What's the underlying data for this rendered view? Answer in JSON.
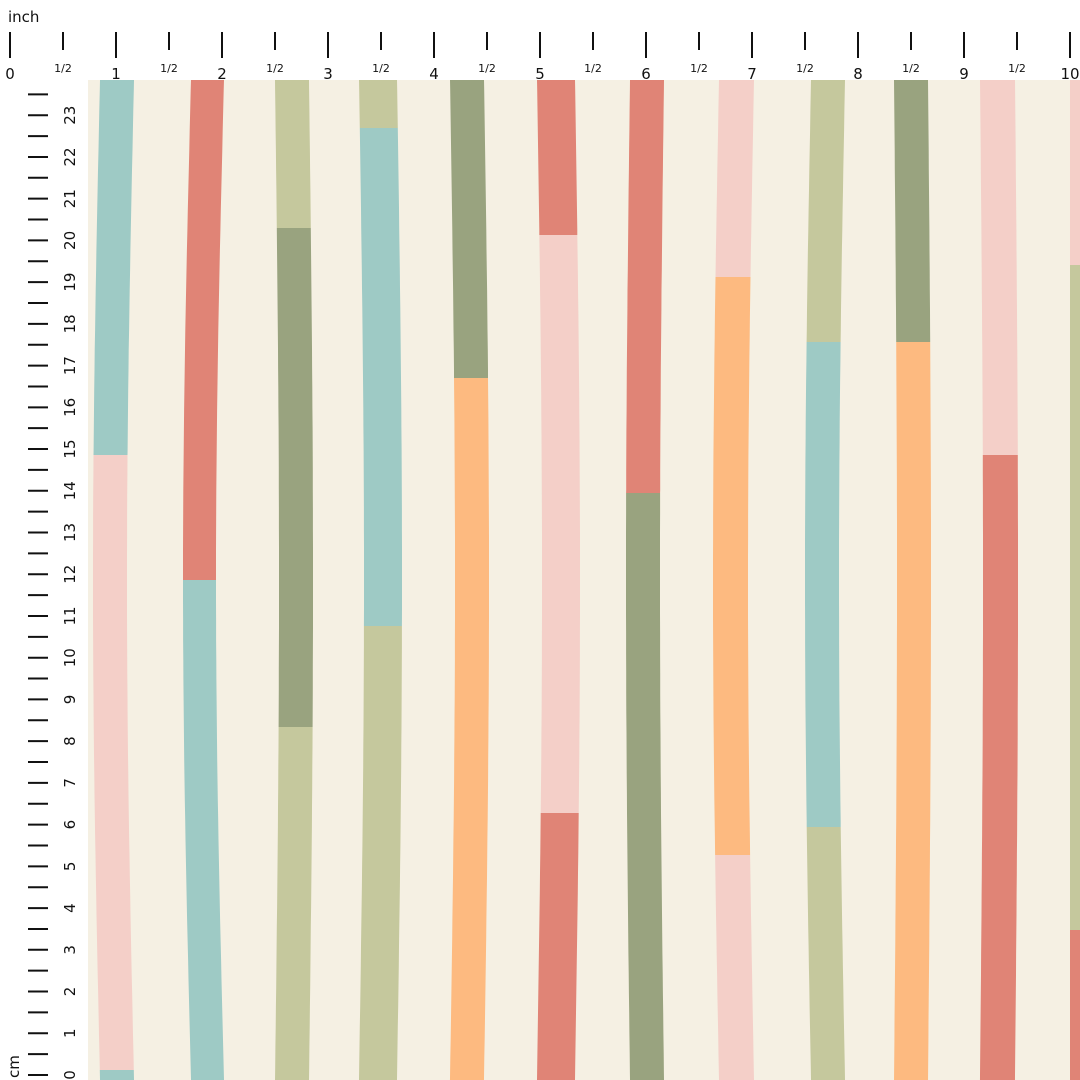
{
  "top_ruler": {
    "unit": "inch",
    "labels": [
      0,
      1,
      2,
      3,
      4,
      5,
      6,
      7,
      8,
      9,
      10
    ],
    "half_labels": [
      "1/2",
      "1/2",
      "1/2",
      "1/2",
      "1/2",
      "1/2",
      "1/2",
      "1/2",
      "1/2",
      "1/2"
    ]
  },
  "side_ruler": {
    "unit": "cm",
    "labels": [
      0,
      1,
      2,
      3,
      4,
      5,
      6,
      7,
      8,
      9,
      10,
      11,
      12,
      13,
      14,
      15,
      16,
      17,
      18,
      19,
      20,
      21,
      22,
      23
    ]
  }
}
